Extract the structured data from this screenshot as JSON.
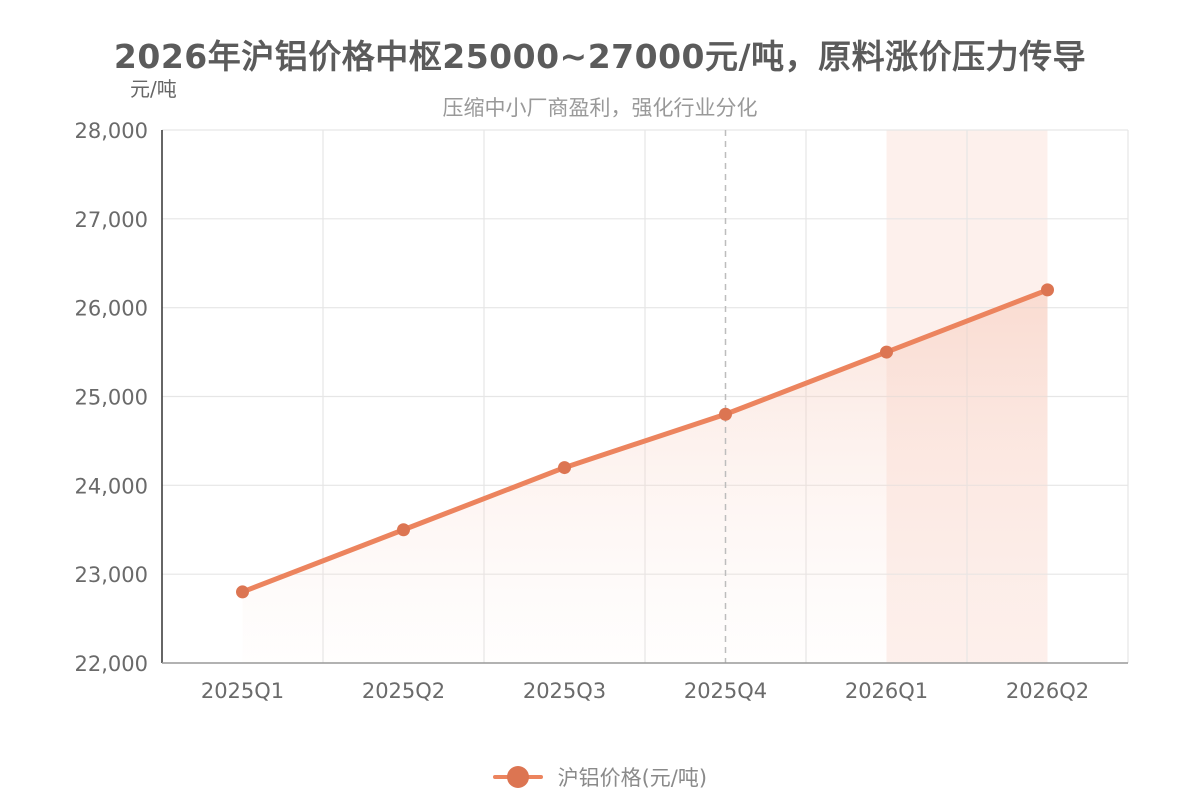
{
  "chart_data": {
    "type": "line",
    "title": "2026年沪铝价格中枢25000~27000元/吨，原料涨价压力传导",
    "subtitle": "压缩中小厂商盈利，强化行业分化",
    "ylabel": "元/吨",
    "categories": [
      "2025Q1",
      "2025Q2",
      "2025Q3",
      "2025Q4",
      "2026Q1",
      "2026Q2"
    ],
    "y_ticks": [
      "22,000",
      "23,000",
      "24,000",
      "25,000",
      "26,000",
      "27,000",
      "28,000"
    ],
    "ylim": [
      22000,
      28000
    ],
    "series": [
      {
        "name": "沪铝价格(元/吨)",
        "values": [
          22800,
          23500,
          24200,
          24800,
          25500,
          26200
        ]
      }
    ],
    "forecast_shaded_from": "2026Q1",
    "reference_line_at": "2025Q4",
    "grid": true,
    "legend_position": "bottom-center",
    "colors": {
      "line": "#ec845e",
      "marker": "#dc7552",
      "shade": "#fdf0ec",
      "fill": "#f9dcd2"
    }
  }
}
